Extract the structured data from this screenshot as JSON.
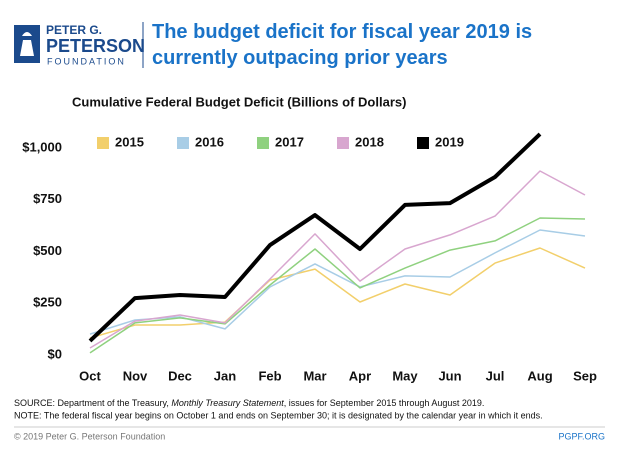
{
  "logo": {
    "line1": "PETER G.",
    "line2": "PETERSON",
    "line3": "FOUNDATION"
  },
  "chart_data": {
    "type": "line",
    "title": "The budget deficit for fiscal year 2019 is currently outpacing prior years",
    "subtitle": "Cumulative Federal Budget Deficit (Billions of Dollars)",
    "categories": [
      "Oct",
      "Nov",
      "Dec",
      "Jan",
      "Feb",
      "Mar",
      "Apr",
      "May",
      "Jun",
      "Jul",
      "Aug",
      "Sep"
    ],
    "series": [
      {
        "name": "2015",
        "color": "#f2cf6b",
        "width": 1.5,
        "values": [
          82,
          145,
          145,
          159,
          362,
          415,
          256,
          343,
          290,
          444,
          517,
          420
        ]
      },
      {
        "name": "2016",
        "color": "#a8cde6",
        "width": 1.5,
        "values": [
          101,
          169,
          184,
          126,
          329,
          440,
          329,
          382,
          377,
          493,
          604,
          575
        ]
      },
      {
        "name": "2017",
        "color": "#8fd17f",
        "width": 1.5,
        "values": [
          10,
          155,
          179,
          150,
          338,
          512,
          324,
          420,
          507,
          551,
          662,
          657
        ]
      },
      {
        "name": "2018",
        "color": "#d8a6cf",
        "width": 1.5,
        "values": [
          34,
          164,
          193,
          155,
          367,
          585,
          357,
          512,
          580,
          671,
          889,
          773
        ]
      },
      {
        "name": "2019",
        "color": "#000000",
        "width": 4,
        "values": [
          68,
          275,
          290,
          280,
          531,
          676,
          512,
          725,
          734,
          860,
          1067,
          null
        ]
      }
    ],
    "ylim": [
      0,
      1000
    ],
    "yticks": [
      {
        "value": 0,
        "label": "$0"
      },
      {
        "value": 250,
        "label": "$250"
      },
      {
        "value": 500,
        "label": "$500"
      },
      {
        "value": 750,
        "label": "$750"
      },
      {
        "value": 1000,
        "label": "$1,000"
      }
    ],
    "legend": "top"
  },
  "notes": {
    "source_prefix": "SOURCE: Department of the Treasury, ",
    "source_italic": "Monthly Treasury Statement",
    "source_suffix": ", issues for September 2015 through August 2019.",
    "note": "NOTE: The federal fiscal year begins on October 1 and ends on September 30; it is designated by the calendar year in which it ends."
  },
  "footer": {
    "left": "© 2019 Peter G. Peterson Foundation",
    "right": "PGPF.ORG"
  }
}
